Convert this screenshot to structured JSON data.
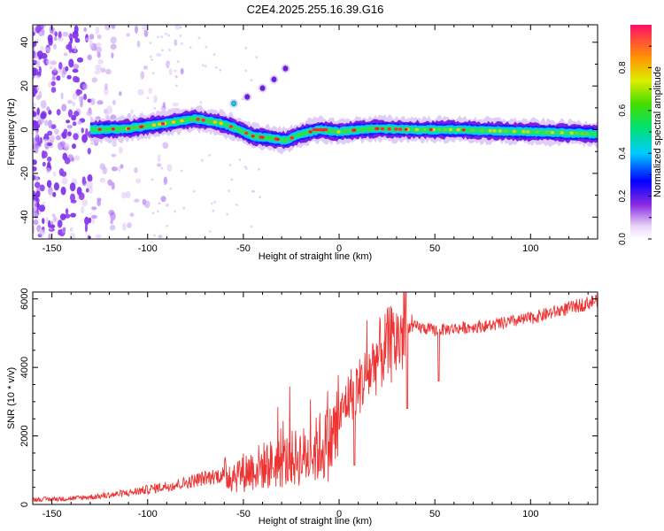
{
  "figure": {
    "title": "C2E4.2025.255.16.39.G16"
  },
  "chart_data": [
    {
      "type": "heatmap",
      "title": "C2E4.2025.255.16.39.G16",
      "xlabel": "Height of straight line (km)",
      "ylabel": "Frequency (Hz)",
      "xlim": [
        -160,
        135
      ],
      "ylim": [
        -50,
        48
      ],
      "xticks": [
        -150,
        -100,
        -50,
        0,
        50,
        100
      ],
      "yticks": [
        -40,
        -20,
        0,
        20,
        40
      ],
      "grid": false,
      "colorbar": {
        "label": "Normalized spectral amplitude",
        "range": [
          0,
          1
        ],
        "ticks": [
          0.0,
          0.2,
          0.4,
          0.6,
          0.8
        ],
        "tick_labels": [
          "0.0",
          "0.2",
          "0.4",
          "0.6",
          "0.8"
        ]
      },
      "main_trace": {
        "description_ridge_x": [
          -130,
          -110,
          -90,
          -75,
          -62,
          -55,
          -45,
          -35,
          -28,
          -20,
          -10,
          0,
          10,
          20,
          40,
          60,
          80,
          100,
          120,
          135
        ],
        "description_ridge_y": [
          0,
          0.5,
          3,
          5,
          3,
          1,
          -3,
          -4,
          -5,
          -2,
          0,
          -1,
          0,
          0.5,
          0,
          0,
          -0.5,
          -1,
          -1.5,
          -2
        ]
      },
      "secondary_trace": {
        "x": [
          -55,
          -48,
          -40,
          -34,
          -28
        ],
        "y": [
          12,
          15,
          19,
          23,
          28
        ]
      }
    },
    {
      "type": "line",
      "xlabel": "Height of straight line (km)",
      "ylabel": "SNR (10 * v/v)",
      "xlim": [
        -160,
        135
      ],
      "ylim": [
        0,
        6200
      ],
      "xticks": [
        -150,
        -100,
        -50,
        0,
        50,
        100
      ],
      "yticks": [
        0,
        2000,
        4000,
        6000
      ],
      "color": "#ee3333",
      "grid": false,
      "series": [
        {
          "name": "SNR",
          "x": [
            -160,
            -140,
            -125,
            -110,
            -100,
            -90,
            -80,
            -70,
            -60,
            -50,
            -40,
            -30,
            -20,
            -15,
            -10,
            -5,
            0,
            3,
            6,
            10,
            15,
            20,
            25,
            30,
            35,
            40,
            50,
            60,
            70,
            80,
            90,
            100,
            110,
            120,
            130,
            135
          ],
          "y": [
            150,
            180,
            250,
            350,
            450,
            550,
            650,
            800,
            900,
            1000,
            1200,
            1300,
            1500,
            1500,
            1800,
            1900,
            2500,
            3000,
            3300,
            3500,
            3900,
            4400,
            4700,
            4900,
            5200,
            5200,
            5100,
            5150,
            5200,
            5250,
            5350,
            5450,
            5600,
            5750,
            5900,
            6000
          ]
        }
      ],
      "annotations": {
        "spike_max": {
          "x": 35,
          "y": 6200
        },
        "dip": {
          "x": 35,
          "y": 2800
        }
      }
    }
  ]
}
